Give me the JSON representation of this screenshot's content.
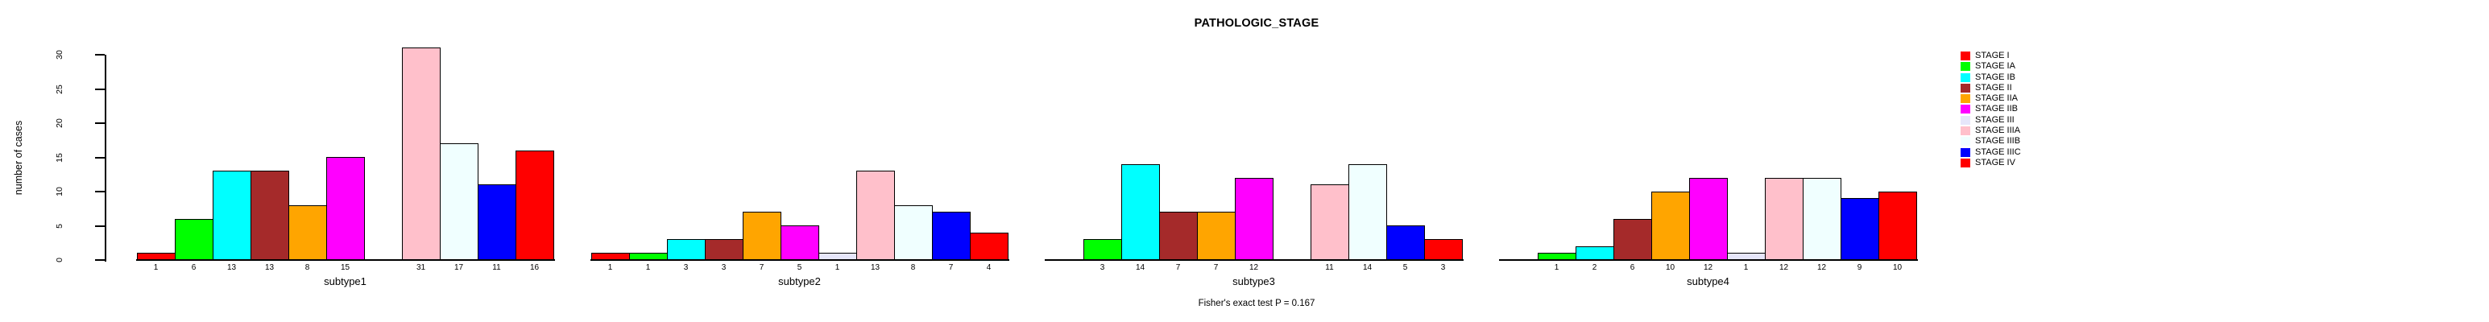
{
  "header": {
    "title": "PATHOLOGIC_STAGE"
  },
  "footer": {
    "annotation": "Fisher's exact test P = 0.167"
  },
  "chart_data": {
    "type": "bar",
    "title": "PATHOLOGIC_STAGE",
    "xlabel": "",
    "ylabel": "number of cases",
    "ylim": [
      0,
      31
    ],
    "yticks": [
      0,
      5,
      10,
      15,
      20,
      25,
      30
    ],
    "grid": false,
    "legend_position": "right",
    "annotation": "Fisher's exact test P = 0.167",
    "stages": [
      {
        "name": "STAGE I",
        "color": "#FF0000"
      },
      {
        "name": "STAGE IA",
        "color": "#00FF00"
      },
      {
        "name": "STAGE IB",
        "color": "#00FFFF"
      },
      {
        "name": "STAGE II",
        "color": "#A52A2A"
      },
      {
        "name": "STAGE IIA",
        "color": "#FFA500"
      },
      {
        "name": "STAGE IIB",
        "color": "#FF00FF"
      },
      {
        "name": "STAGE III",
        "color": "#E6E6FA"
      },
      {
        "name": "STAGE IIIA",
        "color": "#FFC0CB"
      },
      {
        "name": "STAGE IIIB",
        "color": "#F0FFFF"
      },
      {
        "name": "STAGE IIIC",
        "color": "#0000FF"
      },
      {
        "name": "STAGE IV",
        "color": "#FF0000"
      }
    ],
    "series_note": "values are counts per stage, in stage order; 0 = empty slot (no bar, no label)",
    "groups": [
      {
        "label": "subtype1",
        "values": [
          1,
          6,
          13,
          13,
          8,
          15,
          0,
          31,
          17,
          11,
          16
        ]
      },
      {
        "label": "subtype2",
        "values": [
          1,
          1,
          3,
          3,
          7,
          5,
          1,
          13,
          8,
          7,
          4
        ]
      },
      {
        "label": "subtype3",
        "values": [
          0,
          3,
          14,
          7,
          7,
          12,
          0,
          11,
          14,
          5,
          3
        ]
      },
      {
        "label": "subtype4",
        "values": [
          0,
          1,
          2,
          6,
          10,
          12,
          1,
          12,
          12,
          9,
          10
        ]
      }
    ]
  }
}
